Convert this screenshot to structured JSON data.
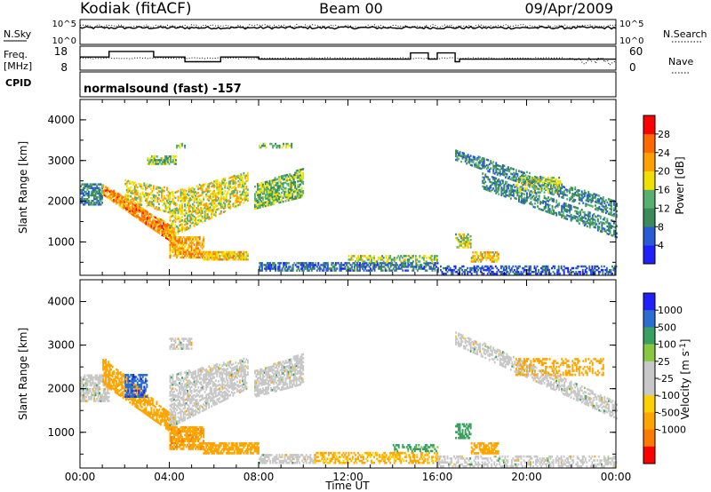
{
  "header": {
    "station": "Kodiak (fitACF)",
    "beam": "Beam 00",
    "date": "09/Apr/2009"
  },
  "status_panels": {
    "nsky_label": "N.Sky",
    "nsearch_label": "N.Search",
    "freq_label_line1": "Freq.",
    "freq_label_line2": "[MHz]",
    "nave_label": "Nave",
    "cpid_label": "CPID",
    "cpid_value": "normalsound (fast) -157",
    "noise_ticks_left": [
      "10^5",
      "10^0"
    ],
    "noise_ticks_right": [
      "10^5",
      "10^0"
    ],
    "freq_ticks": [
      "18",
      "8"
    ],
    "nave_ticks": [
      "60",
      "0"
    ]
  },
  "colors": {
    "power_scale": [
      "#1f1fff",
      "#2a5bd6",
      "#3a8a5a",
      "#58b070",
      "#f0e000",
      "#ff9f00",
      "#ff6a00",
      "#ff0000"
    ],
    "velocity_scale": [
      "#ff0000",
      "#ff7a00",
      "#ffa500",
      "#ffd000",
      "#c8c8c8",
      "#c8c8c8",
      "#88c840",
      "#3aa060",
      "#2a6fd0",
      "#1f1fff"
    ],
    "ground_scatter": "#c8c8c8"
  },
  "chart_data": [
    {
      "type": "line",
      "name": "status",
      "noise_sky_log": [
        [
          0,
          3.2
        ],
        [
          1,
          3.4
        ],
        [
          2,
          3.3
        ],
        [
          3,
          3.5
        ],
        [
          4,
          3.4
        ],
        [
          5,
          3.3
        ],
        [
          6,
          3.5
        ],
        [
          7,
          3.4
        ],
        [
          8,
          3.3
        ],
        [
          9,
          3.5
        ],
        [
          10,
          3.4
        ],
        [
          11,
          3.3
        ],
        [
          12,
          3.4
        ],
        [
          13,
          3.5
        ],
        [
          14,
          3.3
        ],
        [
          15,
          3.4
        ],
        [
          16,
          3.5
        ],
        [
          17,
          3.4
        ],
        [
          18,
          3.3
        ],
        [
          19,
          3.4
        ],
        [
          20,
          3.5
        ],
        [
          21,
          3.4
        ],
        [
          22,
          3.3
        ],
        [
          23,
          3.4
        ],
        [
          24,
          3.3
        ]
      ],
      "freq_mhz": [
        [
          0,
          13.5
        ],
        [
          1.3,
          13.5
        ],
        [
          1.3,
          15.8
        ],
        [
          3.3,
          15.8
        ],
        [
          3.3,
          13.5
        ],
        [
          4.7,
          13.5
        ],
        [
          4.7,
          11.5
        ],
        [
          6.3,
          11.5
        ],
        [
          6.3,
          13.5
        ],
        [
          8,
          13.5
        ],
        [
          8,
          12.6
        ],
        [
          14.8,
          12.6
        ],
        [
          14.8,
          15.2
        ],
        [
          15.6,
          15.2
        ],
        [
          15.6,
          12.6
        ],
        [
          16,
          12.6
        ],
        [
          16,
          15.2
        ],
        [
          16.8,
          15.2
        ],
        [
          16.8,
          11.5
        ],
        [
          17.0,
          11.5
        ],
        [
          17.0,
          12.6
        ],
        [
          24,
          12.6
        ]
      ],
      "nave": [
        [
          0,
          30
        ],
        [
          4,
          32
        ],
        [
          8,
          31
        ],
        [
          12,
          30
        ],
        [
          16,
          30
        ],
        [
          20,
          30
        ],
        [
          22,
          28
        ],
        [
          23,
          20
        ],
        [
          24,
          30
        ]
      ],
      "x_range": [
        0,
        24
      ]
    },
    {
      "type": "heatmap",
      "name": "power",
      "xlabel": "",
      "ylabel": "Slant Range [km]",
      "x_range": [
        0,
        24
      ],
      "y_range": [
        180,
        4500
      ],
      "y_ticks": [
        1000,
        2000,
        3000,
        4000
      ],
      "colorbar_label": "Power [dB]",
      "colorbar_ticks": [
        4,
        8,
        12,
        16,
        20,
        24,
        28
      ],
      "colorbar_range": [
        0,
        32
      ],
      "features": [
        {
          "kind": "band",
          "t0": 0.0,
          "t1": 1.0,
          "r0": 1900,
          "r1": 2400,
          "value": 10,
          "density": 0.7
        },
        {
          "kind": "ramp",
          "t0": 1.0,
          "t1": 4.3,
          "ra0": 2150,
          "ra1": 900,
          "rb0": 2400,
          "rb1": 1300,
          "value": 24,
          "density": 0.8
        },
        {
          "kind": "ramp",
          "t0": 2.0,
          "t1": 4.0,
          "ra0": 2000,
          "ra1": 1700,
          "rb0": 2500,
          "rb1": 2300,
          "value": 18,
          "density": 0.5
        },
        {
          "kind": "ramp",
          "t0": 4.0,
          "t1": 7.5,
          "ra0": 1100,
          "ra1": 2000,
          "rb0": 2200,
          "rb1": 2700,
          "value": 18,
          "density": 0.55
        },
        {
          "kind": "band",
          "t0": 4.0,
          "t1": 5.5,
          "r0": 600,
          "r1": 1100,
          "value": 22,
          "density": 0.7
        },
        {
          "kind": "band",
          "t0": 5.5,
          "t1": 7.5,
          "r0": 550,
          "r1": 750,
          "value": 20,
          "density": 0.8
        },
        {
          "kind": "ramp",
          "t0": 7.8,
          "t1": 10.0,
          "ra0": 1800,
          "ra1": 2100,
          "rb0": 2400,
          "rb1": 2800,
          "value": 14,
          "density": 0.7
        },
        {
          "kind": "band",
          "t0": 3.0,
          "t1": 4.3,
          "r0": 2900,
          "r1": 3100,
          "value": 14,
          "density": 0.6
        },
        {
          "kind": "band",
          "t0": 8.0,
          "t1": 9.5,
          "r0": 3300,
          "r1": 3400,
          "value": 14,
          "density": 0.5
        },
        {
          "kind": "band",
          "t0": 4.3,
          "t1": 4.7,
          "r0": 3300,
          "r1": 3400,
          "value": 14,
          "density": 0.5
        },
        {
          "kind": "band",
          "t0": 8.0,
          "t1": 16.0,
          "r0": 280,
          "r1": 500,
          "value": 8,
          "density": 0.6
        },
        {
          "kind": "band",
          "t0": 12.0,
          "t1": 16.0,
          "r0": 500,
          "r1": 650,
          "value": 16,
          "density": 0.5
        },
        {
          "kind": "band",
          "t0": 16.8,
          "t1": 17.5,
          "r0": 850,
          "r1": 1200,
          "value": 16,
          "density": 0.6
        },
        {
          "kind": "band",
          "t0": 17.5,
          "t1": 18.7,
          "r0": 500,
          "r1": 750,
          "value": 20,
          "density": 0.6
        },
        {
          "kind": "ramp",
          "t0": 16.8,
          "t1": 24.0,
          "ra0": 3000,
          "ra1": 1600,
          "rb0": 3250,
          "rb1": 2000,
          "value": 10,
          "density": 0.55
        },
        {
          "kind": "ramp",
          "t0": 18.0,
          "t1": 24.0,
          "ra0": 2300,
          "ra1": 1100,
          "rb0": 2700,
          "rb1": 1500,
          "value": 10,
          "density": 0.5
        },
        {
          "kind": "band",
          "t0": 19.5,
          "t1": 21.5,
          "r0": 2200,
          "r1": 2600,
          "value": 16,
          "density": 0.4
        },
        {
          "kind": "band",
          "t0": 16.0,
          "t1": 24.0,
          "r0": 200,
          "r1": 400,
          "value": 6,
          "density": 0.5
        }
      ]
    },
    {
      "type": "heatmap",
      "name": "velocity",
      "xlabel": "Time UT",
      "ylabel": "Slant Range [km]",
      "x_range": [
        0,
        24
      ],
      "y_range": [
        180,
        4500
      ],
      "y_ticks": [
        1000,
        2000,
        3000,
        4000
      ],
      "x_ticks": [
        "00:00",
        "04:00",
        "08:00",
        "12:00",
        "16:00",
        "20:00",
        "00:00"
      ],
      "colorbar_label": "Velocity [m s^-1]",
      "colorbar_ticks": [
        "1000",
        "500",
        "100",
        "25",
        "-25",
        "-100",
        "-500",
        "-1000"
      ],
      "features": [
        {
          "kind": "band",
          "t0": 0.0,
          "t1": 1.3,
          "r0": 1700,
          "r1": 2300,
          "value": 0,
          "density": 0.7
        },
        {
          "kind": "ramp",
          "t0": 1.0,
          "t1": 4.3,
          "ra0": 2100,
          "ra1": 900,
          "rb0": 2700,
          "rb1": 1300,
          "value": -300,
          "density": 0.7
        },
        {
          "kind": "band",
          "t0": 2.0,
          "t1": 3.0,
          "r0": 1800,
          "r1": 2300,
          "value": 800,
          "density": 0.6
        },
        {
          "kind": "ramp",
          "t0": 4.0,
          "t1": 7.5,
          "ra0": 1100,
          "ra1": 2000,
          "rb0": 2300,
          "rb1": 2700,
          "value": 0,
          "density": 0.6
        },
        {
          "kind": "band",
          "t0": 4.0,
          "t1": 5.5,
          "r0": 600,
          "r1": 1100,
          "value": -400,
          "density": 0.7
        },
        {
          "kind": "band",
          "t0": 5.5,
          "t1": 8.0,
          "r0": 500,
          "r1": 750,
          "value": -300,
          "density": 0.7
        },
        {
          "kind": "ramp",
          "t0": 7.8,
          "t1": 10.0,
          "ra0": 1800,
          "ra1": 2100,
          "rb0": 2400,
          "rb1": 2800,
          "value": 0,
          "density": 0.7
        },
        {
          "kind": "band",
          "t0": 4.0,
          "t1": 5.0,
          "r0": 2900,
          "r1": 3150,
          "value": 0,
          "density": 0.6
        },
        {
          "kind": "band",
          "t0": 8.0,
          "t1": 10.5,
          "r0": 280,
          "r1": 500,
          "value": 0,
          "density": 0.6
        },
        {
          "kind": "band",
          "t0": 10.5,
          "t1": 16.0,
          "r0": 280,
          "r1": 550,
          "value": -120,
          "density": 0.5
        },
        {
          "kind": "band",
          "t0": 14.0,
          "t1": 16.0,
          "r0": 550,
          "r1": 700,
          "value": 150,
          "density": 0.4
        },
        {
          "kind": "band",
          "t0": 16.8,
          "t1": 17.5,
          "r0": 850,
          "r1": 1200,
          "value": 200,
          "density": 0.6
        },
        {
          "kind": "band",
          "t0": 17.5,
          "t1": 18.7,
          "r0": 500,
          "r1": 750,
          "value": -200,
          "density": 0.6
        },
        {
          "kind": "ramp",
          "t0": 16.8,
          "t1": 24.0,
          "ra0": 3000,
          "ra1": 1300,
          "rb0": 3300,
          "rb1": 1700,
          "value": 0,
          "density": 0.55
        },
        {
          "kind": "band",
          "t0": 19.5,
          "t1": 23.5,
          "r0": 2300,
          "r1": 2700,
          "value": -300,
          "density": 0.35
        },
        {
          "kind": "band",
          "t0": 16.0,
          "t1": 24.0,
          "r0": 200,
          "r1": 450,
          "value": 0,
          "density": 0.45
        }
      ]
    }
  ]
}
